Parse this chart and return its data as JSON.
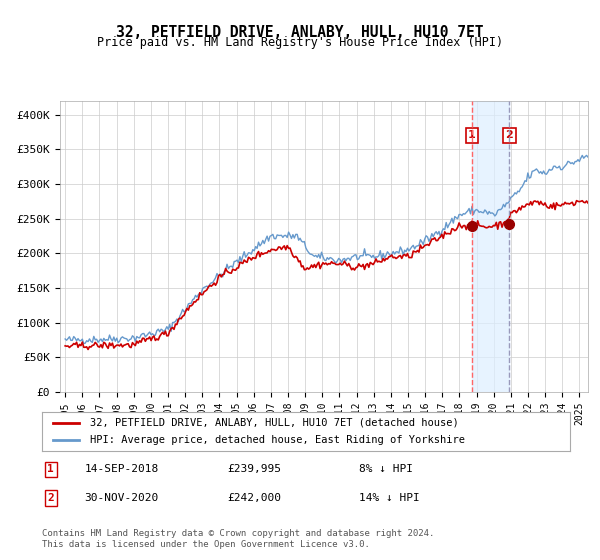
{
  "title": "32, PETFIELD DRIVE, ANLABY, HULL, HU10 7ET",
  "subtitle": "Price paid vs. HM Land Registry's House Price Index (HPI)",
  "footnote": "Contains HM Land Registry data © Crown copyright and database right 2024.\nThis data is licensed under the Open Government Licence v3.0.",
  "legend_line1": "32, PETFIELD DRIVE, ANLABY, HULL, HU10 7ET (detached house)",
  "legend_line2": "HPI: Average price, detached house, East Riding of Yorkshire",
  "annotation1_label": "1",
  "annotation1_date": "14-SEP-2018",
  "annotation1_price": "£239,995",
  "annotation1_hpi": "8% ↓ HPI",
  "annotation1_year": 2018.71,
  "annotation1_value": 239995,
  "annotation2_label": "2",
  "annotation2_date": "30-NOV-2020",
  "annotation2_price": "£242,000",
  "annotation2_hpi": "14% ↓ HPI",
  "annotation2_year": 2020.92,
  "annotation2_value": 242000,
  "hpi_color": "#6699cc",
  "price_color": "#cc0000",
  "dot_color": "#990000",
  "vline1_color": "#ff6666",
  "vline2_color": "#9999bb",
  "shade_color": "#ddeeff",
  "background_color": "#ffffff",
  "grid_color": "#cccccc",
  "ylim": [
    0,
    420000
  ],
  "yticks": [
    0,
    50000,
    100000,
    150000,
    200000,
    250000,
    300000,
    350000,
    400000
  ],
  "ytick_labels": [
    "£0",
    "£50K",
    "£100K",
    "£150K",
    "£200K",
    "£250K",
    "£300K",
    "£350K",
    "£400K"
  ],
  "xtick_years": [
    1995,
    1996,
    1997,
    1998,
    1999,
    2000,
    2001,
    2002,
    2003,
    2004,
    2005,
    2006,
    2007,
    2008,
    2009,
    2010,
    2011,
    2012,
    2013,
    2014,
    2015,
    2016,
    2017,
    2018,
    2019,
    2020,
    2021,
    2022,
    2023,
    2024,
    2025
  ]
}
